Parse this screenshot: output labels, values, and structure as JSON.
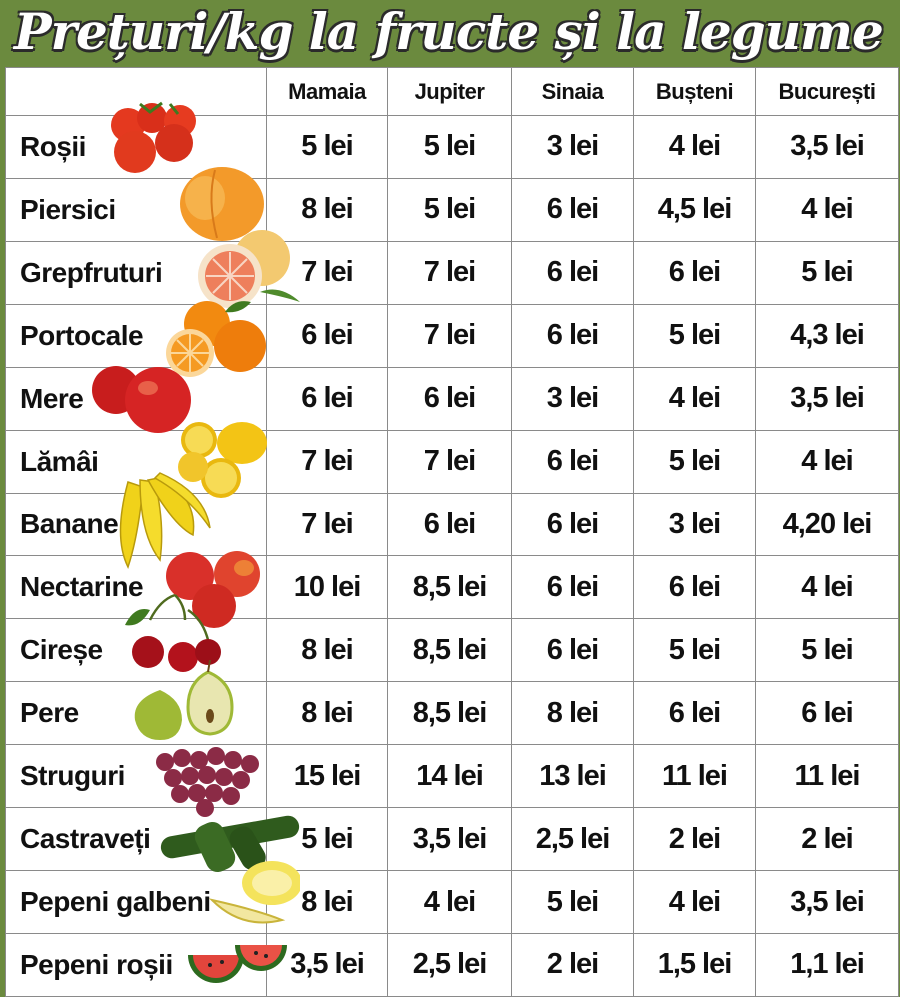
{
  "title": "Prețuri/kg la fructe și la legume",
  "columns": [
    "",
    "Mamaia",
    "Jupiter",
    "Sinaia",
    "Bușteni",
    "București"
  ],
  "rows": [
    {
      "name": "Roșii",
      "prices": [
        "5 lei",
        "5 lei",
        "3 lei",
        "4 lei",
        "3,5 lei"
      ],
      "icon": "tomato-icon"
    },
    {
      "name": "Piersici",
      "prices": [
        "8 lei",
        "5 lei",
        "6 lei",
        "4,5 lei",
        "4 lei"
      ],
      "icon": "peach-icon"
    },
    {
      "name": "Grepfruturi",
      "prices": [
        "7 lei",
        "7 lei",
        "6 lei",
        "6 lei",
        "5 lei"
      ],
      "icon": "grapefruit-icon"
    },
    {
      "name": "Portocale",
      "prices": [
        "6 lei",
        "7 lei",
        "6 lei",
        "5 lei",
        "4,3 lei"
      ],
      "icon": "orange-icon"
    },
    {
      "name": "Mere",
      "prices": [
        "6 lei",
        "6 lei",
        "3 lei",
        "4 lei",
        "3,5 lei"
      ],
      "icon": "apple-icon"
    },
    {
      "name": "Lămâi",
      "prices": [
        "7 lei",
        "7 lei",
        "6 lei",
        "5 lei",
        "4 lei"
      ],
      "icon": "lemon-icon"
    },
    {
      "name": "Banane",
      "prices": [
        "7 lei",
        "6 lei",
        "6 lei",
        "3 lei",
        "4,20 lei"
      ],
      "icon": "banana-icon"
    },
    {
      "name": "Nectarine",
      "prices": [
        "10 lei",
        "8,5 lei",
        "6 lei",
        "6 lei",
        "4 lei"
      ],
      "icon": "nectarine-icon"
    },
    {
      "name": "Cireșe",
      "prices": [
        "8 lei",
        "8,5 lei",
        "6 lei",
        "5 lei",
        "5 lei"
      ],
      "icon": "cherry-icon"
    },
    {
      "name": "Pere",
      "prices": [
        "8 lei",
        "8,5 lei",
        "8 lei",
        "6 lei",
        "6 lei"
      ],
      "icon": "pear-icon"
    },
    {
      "name": "Struguri",
      "prices": [
        "15 lei",
        "14 lei",
        "13 lei",
        "11 lei",
        "11 lei"
      ],
      "icon": "grapes-icon"
    },
    {
      "name": "Castraveți",
      "prices": [
        "5 lei",
        "3,5 lei",
        "2,5 lei",
        "2 lei",
        "2 lei"
      ],
      "icon": "cucumber-icon"
    },
    {
      "name": "Pepeni galbeni",
      "prices": [
        "8 lei",
        "4 lei",
        "5 lei",
        "4 lei",
        "3,5 lei"
      ],
      "icon": "melon-icon"
    },
    {
      "name": "Pepeni roșii",
      "prices": [
        "3,5 lei",
        "2,5 lei",
        "2 lei",
        "1,5 lei",
        "1,1 lei"
      ],
      "icon": "watermelon-icon"
    }
  ],
  "colors": {
    "frame": "#6b8a3e",
    "title_fill": "#ffffff",
    "title_outline": "#2b2b2b",
    "grid_lines": "#8a8a8a"
  }
}
